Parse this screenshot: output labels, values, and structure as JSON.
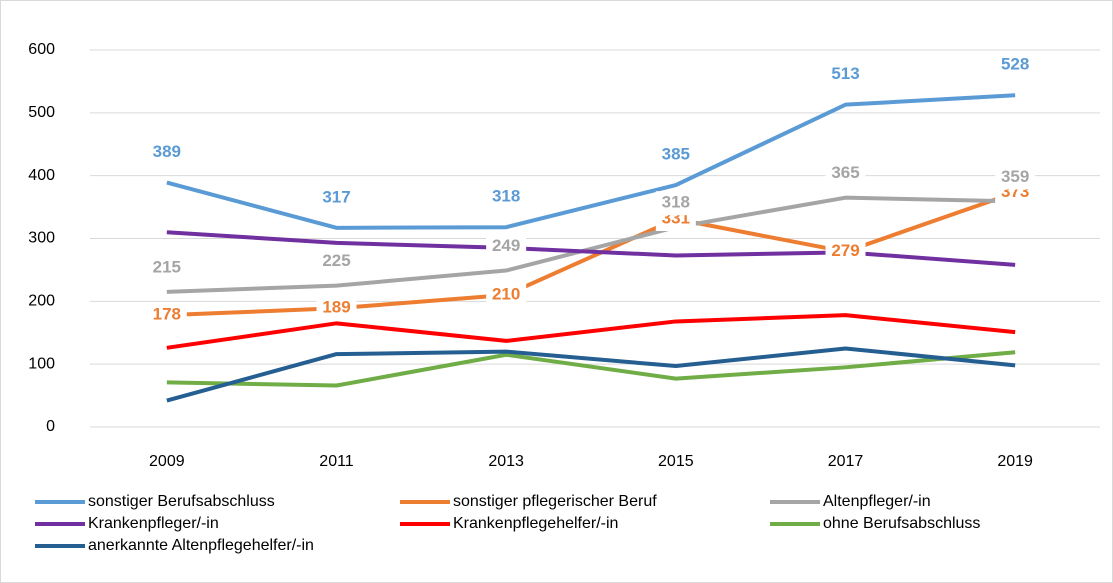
{
  "chart_data": {
    "type": "line",
    "categories": [
      "2009",
      "2011",
      "2013",
      "2015",
      "2017",
      "2019"
    ],
    "ylim": [
      0,
      600
    ],
    "yticks": [
      0,
      100,
      200,
      300,
      400,
      500,
      600
    ],
    "grid": true,
    "legend": "bottom",
    "series": [
      {
        "name": "sonstiger Berufsabschluss",
        "color": "#5b9bd5",
        "values": [
          389,
          317,
          318,
          385,
          513,
          528
        ],
        "data_labels": true
      },
      {
        "name": "sonstiger pflegerischer Beruf",
        "color": "#ed7d31",
        "values": [
          178,
          189,
          210,
          331,
          279,
          373
        ],
        "data_labels": true
      },
      {
        "name": "Altenpfleger/-in",
        "color": "#a5a5a5",
        "values": [
          215,
          225,
          249,
          318,
          365,
          359
        ],
        "data_labels": true
      },
      {
        "name": "Krankenpfleger/-in",
        "color": "#7030a0",
        "values": [
          310,
          293,
          285,
          273,
          278,
          258
        ],
        "data_labels": false
      },
      {
        "name": "Krankenpflegehelfer/-in",
        "color": "#ff0000",
        "values": [
          126,
          165,
          137,
          168,
          178,
          151
        ],
        "data_labels": false
      },
      {
        "name": "ohne Berufsabschluss",
        "color": "#70ad47",
        "values": [
          71,
          66,
          115,
          77,
          95,
          119
        ],
        "data_labels": false
      },
      {
        "name": "anerkannte Altenpflegehelfer/-in",
        "color": "#255e91",
        "values": [
          42,
          116,
          120,
          97,
          125,
          98
        ],
        "data_labels": false
      }
    ]
  }
}
